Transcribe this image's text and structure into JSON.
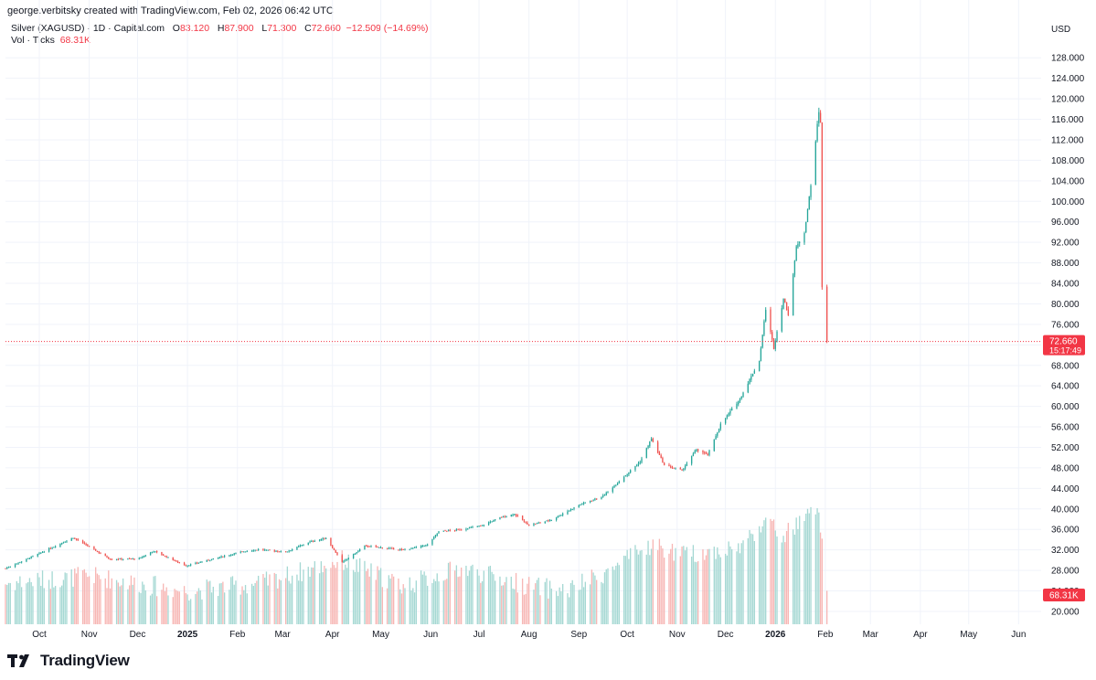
{
  "header": {
    "credit": "george.verbitsky created with TradingView.com, Feb 02, 2026 06:42 UTC"
  },
  "legend": {
    "symbol": "Silver (XAGUSD) · 1D · Capital.com",
    "open_key": "O",
    "open": "83.120",
    "high_key": "H",
    "high": "87.900",
    "low_key": "L",
    "low": "71.300",
    "close_key": "C",
    "close": "72.660",
    "change": "−12.509 (−14.69%)",
    "vol_label": "Vol · Ticks",
    "vol_value": "68.31K"
  },
  "footer": {
    "brand": "TradingView"
  },
  "colors": {
    "up": "#26a69a",
    "down": "#ef5350",
    "vol_up": "#a5d8d3",
    "vol_down": "#f7b6b4",
    "grid": "#f0f3fa",
    "axis_text": "#131722",
    "price_label_bg": "#f23645"
  },
  "chart_data": {
    "type": "candlestick",
    "currency": "USD",
    "y_ticks": [
      "128.000",
      "124.000",
      "120.000",
      "116.000",
      "112.000",
      "108.000",
      "104.000",
      "100.000",
      "96.000",
      "92.000",
      "88.000",
      "84.000",
      "80.000",
      "76.000",
      "72.000",
      "68.000",
      "64.000",
      "60.000",
      "56.000",
      "52.000",
      "48.000",
      "44.000",
      "40.000",
      "36.000",
      "32.000",
      "28.000",
      "24.000",
      "20.000"
    ],
    "ylim": [
      17.5,
      130
    ],
    "x_ticks": [
      {
        "label": "Oct",
        "date": "2024-10-01",
        "bold": false
      },
      {
        "label": "Nov",
        "date": "2024-11-01",
        "bold": false
      },
      {
        "label": "Dec",
        "date": "2024-12-01",
        "bold": false
      },
      {
        "label": "2025",
        "date": "2025-01-01",
        "bold": true
      },
      {
        "label": "Feb",
        "date": "2025-02-01",
        "bold": false
      },
      {
        "label": "Mar",
        "date": "2025-03-01",
        "bold": false
      },
      {
        "label": "Apr",
        "date": "2025-04-01",
        "bold": false
      },
      {
        "label": "May",
        "date": "2025-05-01",
        "bold": false
      },
      {
        "label": "Jun",
        "date": "2025-06-01",
        "bold": false
      },
      {
        "label": "Jul",
        "date": "2025-07-01",
        "bold": false
      },
      {
        "label": "Aug",
        "date": "2025-08-01",
        "bold": false
      },
      {
        "label": "Sep",
        "date": "2025-09-01",
        "bold": false
      },
      {
        "label": "Oct",
        "date": "2025-10-01",
        "bold": false
      },
      {
        "label": "Nov",
        "date": "2025-11-01",
        "bold": false
      },
      {
        "label": "Dec",
        "date": "2025-12-01",
        "bold": false
      },
      {
        "label": "2026",
        "date": "2026-01-01",
        "bold": true
      },
      {
        "label": "Feb",
        "date": "2026-02-01",
        "bold": false
      },
      {
        "label": "Mar",
        "date": "2026-03-01",
        "bold": false
      },
      {
        "label": "Apr",
        "date": "2026-04-01",
        "bold": false
      },
      {
        "label": "May",
        "date": "2026-05-01",
        "bold": false
      },
      {
        "label": "Jun",
        "date": "2026-06-01",
        "bold": false
      }
    ],
    "x_range": [
      "2024-09-10",
      "2026-06-15"
    ],
    "last_price": {
      "value": 72.66,
      "label": "72.660",
      "countdown": "15:17:49"
    },
    "volume_last": "68.31K",
    "close_path": [
      [
        "2024-09-10",
        28.4
      ],
      [
        "2024-10-01",
        31.3
      ],
      [
        "2024-10-22",
        34.4
      ],
      [
        "2024-11-01",
        32.6
      ],
      [
        "2024-11-14",
        30.2
      ],
      [
        "2024-12-02",
        30.3
      ],
      [
        "2024-12-11",
        31.8
      ],
      [
        "2024-12-31",
        28.9
      ],
      [
        "2025-01-15",
        30.1
      ],
      [
        "2025-02-03",
        31.6
      ],
      [
        "2025-02-14",
        32.1
      ],
      [
        "2025-03-03",
        31.6
      ],
      [
        "2025-03-18",
        33.6
      ],
      [
        "2025-03-28",
        34.3
      ],
      [
        "2025-04-07",
        29.6
      ],
      [
        "2025-04-15",
        31.3
      ],
      [
        "2025-04-21",
        32.8
      ],
      [
        "2025-05-15",
        32.0
      ],
      [
        "2025-05-30",
        33.0
      ],
      [
        "2025-06-06",
        35.6
      ],
      [
        "2025-06-20",
        36.0
      ],
      [
        "2025-07-03",
        36.8
      ],
      [
        "2025-07-14",
        38.3
      ],
      [
        "2025-07-23",
        39.0
      ],
      [
        "2025-08-01",
        36.8
      ],
      [
        "2025-08-15",
        37.9
      ],
      [
        "2025-09-02",
        40.9
      ],
      [
        "2025-09-16",
        42.5
      ],
      [
        "2025-09-30",
        46.6
      ],
      [
        "2025-10-09",
        49.2
      ],
      [
        "2025-10-16",
        53.7
      ],
      [
        "2025-10-24",
        48.5
      ],
      [
        "2025-11-04",
        47.5
      ],
      [
        "2025-11-13",
        51.6
      ],
      [
        "2025-11-20",
        50.5
      ],
      [
        "2025-11-28",
        56.5
      ],
      [
        "2025-12-10",
        61.5
      ],
      [
        "2025-12-22",
        68.9
      ],
      [
        "2025-12-26",
        79.0
      ],
      [
        "2025-12-31",
        71.4
      ],
      [
        "2026-01-06",
        81.0
      ],
      [
        "2026-01-09",
        78.0
      ],
      [
        "2026-01-14",
        91.0
      ],
      [
        "2026-01-19",
        94.0
      ],
      [
        "2026-01-23",
        103.0
      ],
      [
        "2026-01-26",
        112.0
      ],
      [
        "2026-01-28",
        117.5
      ],
      [
        "2026-01-29",
        115.5
      ],
      [
        "2026-01-30",
        83.1
      ],
      [
        "2026-02-02",
        72.66
      ]
    ],
    "volume_path": [
      [
        "2024-09-10",
        25.5
      ],
      [
        "2024-11-01",
        27.0
      ],
      [
        "2024-12-31",
        24.0
      ],
      [
        "2025-02-15",
        25.5
      ],
      [
        "2025-04-07",
        30.0
      ],
      [
        "2025-05-15",
        25.0
      ],
      [
        "2025-06-20",
        28.5
      ],
      [
        "2025-08-01",
        25.0
      ],
      [
        "2025-08-25",
        24.0
      ],
      [
        "2025-09-20",
        28.0
      ],
      [
        "2025-10-16",
        33.0
      ],
      [
        "2025-11-05",
        31.0
      ],
      [
        "2025-12-10",
        32.5
      ],
      [
        "2025-12-26",
        38.0
      ],
      [
        "2026-01-05",
        34.5
      ],
      [
        "2026-01-27",
        40.0
      ],
      [
        "2026-01-30",
        35.0
      ],
      [
        "2026-02-02",
        24.0
      ]
    ]
  }
}
